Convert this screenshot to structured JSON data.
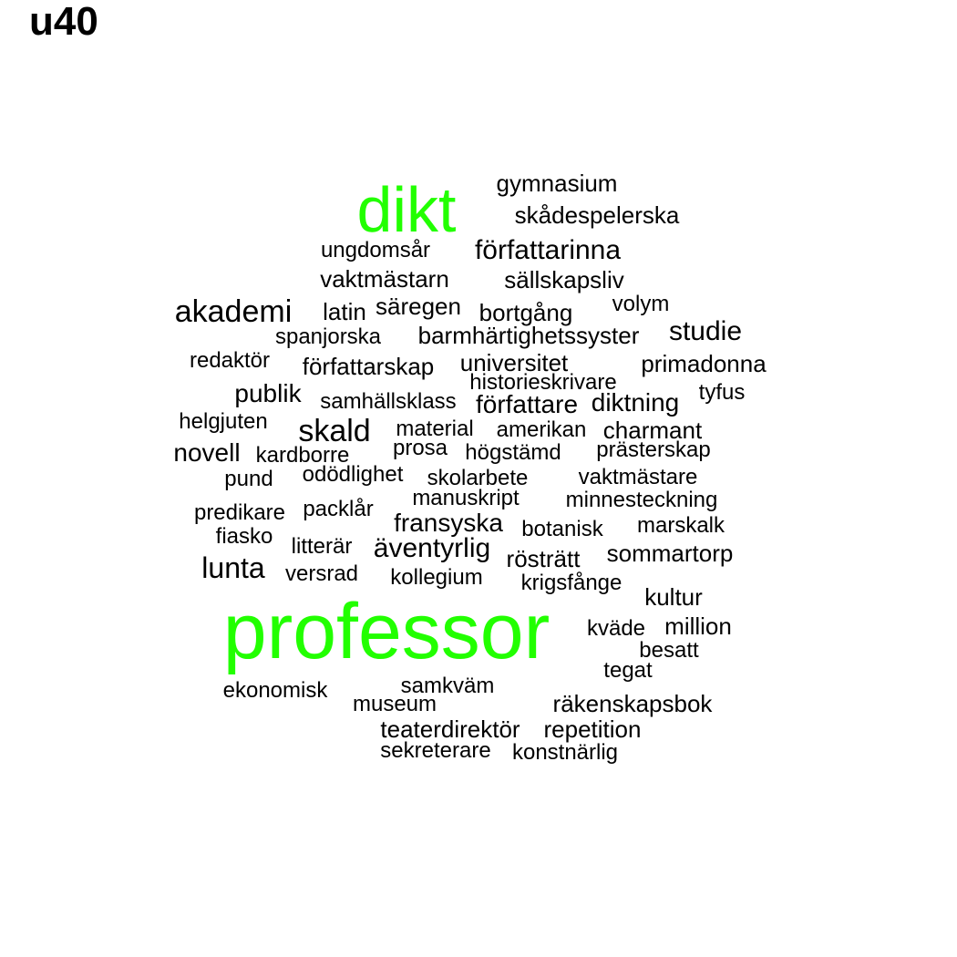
{
  "title": "u40",
  "colors": {
    "highlight": "#22ff00",
    "normal": "#000000",
    "background": "#ffffff"
  },
  "words": [
    {
      "text": "dikt",
      "highlight": true
    },
    {
      "text": "gymnasium",
      "highlight": false
    },
    {
      "text": "skådespelerska",
      "highlight": false
    },
    {
      "text": "ungdomsår",
      "highlight": false
    },
    {
      "text": "författarinna",
      "highlight": false
    },
    {
      "text": "vaktmästarn",
      "highlight": false
    },
    {
      "text": "sällskapsliv",
      "highlight": false
    },
    {
      "text": "akademi",
      "highlight": false
    },
    {
      "text": "latin",
      "highlight": false
    },
    {
      "text": "säregen",
      "highlight": false
    },
    {
      "text": "bortgång",
      "highlight": false
    },
    {
      "text": "volym",
      "highlight": false
    },
    {
      "text": "spanjorska",
      "highlight": false
    },
    {
      "text": "barmhärtighetssyster",
      "highlight": false
    },
    {
      "text": "studie",
      "highlight": false
    },
    {
      "text": "redaktör",
      "highlight": false
    },
    {
      "text": "författarskap",
      "highlight": false
    },
    {
      "text": "universitet",
      "highlight": false
    },
    {
      "text": "primadonna",
      "highlight": false
    },
    {
      "text": "historieskrivare",
      "highlight": false
    },
    {
      "text": "publik",
      "highlight": false
    },
    {
      "text": "samhällsklass",
      "highlight": false
    },
    {
      "text": "författare",
      "highlight": false
    },
    {
      "text": "diktning",
      "highlight": false
    },
    {
      "text": "tyfus",
      "highlight": false
    },
    {
      "text": "helgjuten",
      "highlight": false
    },
    {
      "text": "skald",
      "highlight": false
    },
    {
      "text": "material",
      "highlight": false
    },
    {
      "text": "amerikan",
      "highlight": false
    },
    {
      "text": "charmant",
      "highlight": false
    },
    {
      "text": "novell",
      "highlight": false
    },
    {
      "text": "kardborre",
      "highlight": false
    },
    {
      "text": "prosa",
      "highlight": false
    },
    {
      "text": "högstämd",
      "highlight": false
    },
    {
      "text": "prästerskap",
      "highlight": false
    },
    {
      "text": "pund",
      "highlight": false
    },
    {
      "text": "odödlighet",
      "highlight": false
    },
    {
      "text": "skolarbete",
      "highlight": false
    },
    {
      "text": "vaktmästare",
      "highlight": false
    },
    {
      "text": "manuskript",
      "highlight": false
    },
    {
      "text": "minnesteckning",
      "highlight": false
    },
    {
      "text": "predikare",
      "highlight": false
    },
    {
      "text": "packlår",
      "highlight": false
    },
    {
      "text": "fransyska",
      "highlight": false
    },
    {
      "text": "botanisk",
      "highlight": false
    },
    {
      "text": "marskalk",
      "highlight": false
    },
    {
      "text": "fiasko",
      "highlight": false
    },
    {
      "text": "litterär",
      "highlight": false
    },
    {
      "text": "äventyrlig",
      "highlight": false
    },
    {
      "text": "rösträtt",
      "highlight": false
    },
    {
      "text": "sommartorp",
      "highlight": false
    },
    {
      "text": "lunta",
      "highlight": false
    },
    {
      "text": "versrad",
      "highlight": false
    },
    {
      "text": "kollegium",
      "highlight": false
    },
    {
      "text": "krigsfånge",
      "highlight": false
    },
    {
      "text": "kultur",
      "highlight": false
    },
    {
      "text": "professor",
      "highlight": true
    },
    {
      "text": "kväde",
      "highlight": false
    },
    {
      "text": "million",
      "highlight": false
    },
    {
      "text": "besatt",
      "highlight": false
    },
    {
      "text": "tegat",
      "highlight": false
    },
    {
      "text": "ekonomisk",
      "highlight": false
    },
    {
      "text": "samkväm",
      "highlight": false
    },
    {
      "text": "museum",
      "highlight": false
    },
    {
      "text": "räkenskapsbok",
      "highlight": false
    },
    {
      "text": "teaterdirektör",
      "highlight": false
    },
    {
      "text": "repetition",
      "highlight": false
    },
    {
      "text": "sekreterare",
      "highlight": false
    },
    {
      "text": "konstnärlig",
      "highlight": false
    }
  ]
}
